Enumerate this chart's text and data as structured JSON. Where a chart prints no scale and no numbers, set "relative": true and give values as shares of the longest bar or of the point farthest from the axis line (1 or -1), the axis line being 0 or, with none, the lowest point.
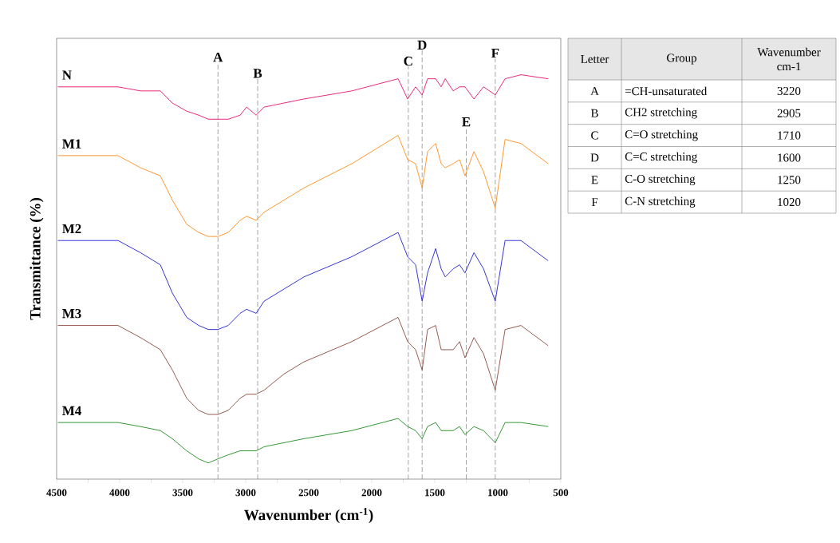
{
  "chart_data": [
    {
      "type": "line",
      "relative": true,
      "xlabel": "Wavenumber (cm$^{-1}$)",
      "ylabel": "Transmittance (%)",
      "xlim": [
        4500,
        500
      ],
      "xticks": [
        4500,
        {
          "value": 4250,
          "label": null
        },
        4000,
        {
          "value": 3750,
          "label": null
        },
        3500,
        {
          "value": 3250,
          "label": null
        },
        3000,
        {
          "value": 2750,
          "label": null
        },
        2500,
        {
          "value": 2250,
          "label": null
        },
        2000,
        {
          "value": 1750,
          "label": null
        },
        1500,
        {
          "value": 1250,
          "label": null
        },
        1000,
        {
          "value": 750,
          "label": null
        },
        500
      ],
      "x": [
        4490,
        4250,
        4013,
        3835,
        3677,
        3582,
        3468,
        3373,
        3297,
        3221,
        3139,
        3044,
        2993,
        2917,
        2854,
        2696,
        2538,
        2158,
        1791,
        1715,
        1652,
        1600,
        1557,
        1493,
        1449,
        1417,
        1354,
        1303,
        1260,
        1189,
        1113,
        1020,
        942,
        816,
        600
      ],
      "series": [
        {
          "name": "N",
          "color": "#e8126e",
          "values": [
            0.97,
            0.97,
            0.97,
            0.96,
            0.96,
            0.93,
            0.91,
            0.9,
            0.89,
            0.89,
            0.89,
            0.9,
            0.92,
            0.9,
            0.92,
            0.93,
            0.94,
            0.96,
            0.99,
            0.94,
            0.97,
            0.95,
            0.99,
            0.99,
            0.97,
            0.99,
            0.96,
            0.97,
            0.97,
            0.94,
            0.97,
            0.95,
            0.99,
            1.0,
            0.99
          ]
        },
        {
          "name": "M1",
          "color": "#ff8c1a",
          "values": [
            0.8,
            0.8,
            0.8,
            0.77,
            0.75,
            0.69,
            0.63,
            0.61,
            0.6,
            0.6,
            0.61,
            0.64,
            0.65,
            0.64,
            0.66,
            0.69,
            0.72,
            0.78,
            0.85,
            0.79,
            0.78,
            0.72,
            0.81,
            0.83,
            0.78,
            0.77,
            0.78,
            0.79,
            0.75,
            0.81,
            0.76,
            0.67,
            0.84,
            0.83,
            0.78
          ]
        },
        {
          "name": "M2",
          "color": "#1f1fd6",
          "values": [
            0.59,
            0.59,
            0.59,
            0.56,
            0.53,
            0.46,
            0.4,
            0.38,
            0.37,
            0.37,
            0.38,
            0.41,
            0.42,
            0.41,
            0.44,
            0.47,
            0.5,
            0.55,
            0.61,
            0.55,
            0.53,
            0.44,
            0.51,
            0.57,
            0.52,
            0.5,
            0.52,
            0.53,
            0.51,
            0.56,
            0.52,
            0.44,
            0.59,
            0.59,
            0.54
          ]
        },
        {
          "name": "M3",
          "color": "#8b4a3c",
          "values": [
            0.38,
            0.38,
            0.38,
            0.35,
            0.32,
            0.27,
            0.2,
            0.17,
            0.16,
            0.16,
            0.17,
            0.2,
            0.21,
            0.21,
            0.22,
            0.26,
            0.29,
            0.34,
            0.4,
            0.34,
            0.32,
            0.27,
            0.37,
            0.38,
            0.32,
            0.32,
            0.32,
            0.34,
            0.3,
            0.35,
            0.31,
            0.22,
            0.37,
            0.38,
            0.33
          ]
        },
        {
          "name": "M4",
          "color": "#1e8c1e",
          "values": [
            0.14,
            0.14,
            0.14,
            0.13,
            0.12,
            0.1,
            0.07,
            0.05,
            0.04,
            0.05,
            0.06,
            0.07,
            0.07,
            0.07,
            0.08,
            0.09,
            0.1,
            0.12,
            0.15,
            0.13,
            0.12,
            0.1,
            0.13,
            0.14,
            0.12,
            0.12,
            0.12,
            0.13,
            0.11,
            0.13,
            0.12,
            0.09,
            0.14,
            0.14,
            0.13
          ]
        }
      ],
      "ref_lines": [
        {
          "axis": "x",
          "value": 3220,
          "label": "A",
          "color": "#808080",
          "line_style": "dashed"
        },
        {
          "axis": "x",
          "value": 2905,
          "label": "B",
          "color": "#808080",
          "line_style": "dashed"
        },
        {
          "axis": "x",
          "value": 1710,
          "label": "C",
          "color": "#808080",
          "line_style": "dashed"
        },
        {
          "axis": "x",
          "value": 1600,
          "label": "D",
          "color": "#808080",
          "line_style": "dashed"
        },
        {
          "axis": "x",
          "value": 1250,
          "label": "E",
          "color": "#808080",
          "line_style": "dashed"
        },
        {
          "axis": "x",
          "value": 1020,
          "label": "F",
          "color": "#808080",
          "line_style": "dashed"
        }
      ],
      "marker": "none",
      "line_style": "solid"
    },
    {
      "type": "other",
      "annotations": [
        "Letter",
        "Group",
        "Wavenumber cm-1",
        "A",
        "=CH-unsaturated",
        "3220",
        "B",
        "CH2 stretching",
        "2905",
        "C",
        "C=O stretching",
        "1710",
        "D",
        "C=C stretching",
        "1600",
        "E",
        "C-O    stretching",
        "1250",
        "F",
        "C-N stretching",
        "1020"
      ]
    }
  ]
}
